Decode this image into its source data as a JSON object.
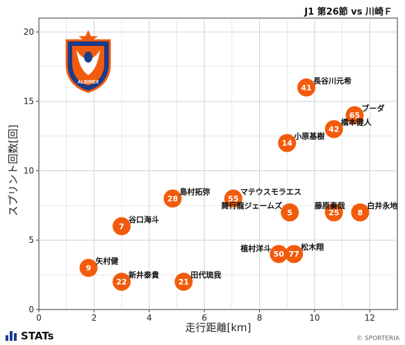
{
  "header": {
    "title": "J1 第26節 vs 川崎Ｆ"
  },
  "footer": {
    "brand": "STATs",
    "credit": "© SPORTERIA"
  },
  "colors": {
    "marker": "#f35b0c",
    "marker_text": "#ffffff",
    "grid": "#d0d0d0",
    "axis": "#333333"
  },
  "crest": {
    "text": "ALBIREX",
    "icon": "albirex-niigata-crest-icon"
  },
  "chart_data": {
    "type": "scatter",
    "xlabel": "走行距離[km]",
    "ylabel": "スプリント回数[回]",
    "xlim": [
      0,
      13
    ],
    "ylim": [
      0,
      21
    ],
    "xticks": [
      0,
      2,
      4,
      6,
      8,
      10,
      12
    ],
    "yticks": [
      0,
      5,
      10,
      15,
      20
    ],
    "grid": true,
    "points": [
      {
        "number": "41",
        "name": "長谷川元希",
        "x": 9.7,
        "y": 16
      },
      {
        "number": "65",
        "name": "ブーダ",
        "x": 11.45,
        "y": 14
      },
      {
        "number": "42",
        "name": "橋本健人",
        "x": 10.7,
        "y": 13
      },
      {
        "number": "14",
        "name": "小原基樹",
        "x": 9.0,
        "y": 12
      },
      {
        "number": "28",
        "name": "島村拓弥",
        "x": 4.85,
        "y": 8
      },
      {
        "number": "55",
        "name": "マテウスモラエス",
        "x": 7.05,
        "y": 8
      },
      {
        "number": "5",
        "name": "舞行龍ジェームズ",
        "x": 9.1,
        "y": 7
      },
      {
        "number": "25",
        "name": "藤原奏哉",
        "x": 10.7,
        "y": 7
      },
      {
        "number": "8",
        "name": "白井永地",
        "x": 11.65,
        "y": 7
      },
      {
        "number": "7",
        "name": "谷口海斗",
        "x": 3.0,
        "y": 6
      },
      {
        "number": "50",
        "name": "植村洋斗",
        "x": 8.7,
        "y": 4
      },
      {
        "number": "77",
        "name": "松木翔",
        "x": 9.25,
        "y": 4
      },
      {
        "number": "9",
        "name": "矢村健",
        "x": 1.8,
        "y": 3
      },
      {
        "number": "22",
        "name": "新井泰貴",
        "x": 3.0,
        "y": 2
      },
      {
        "number": "21",
        "name": "田代琉我",
        "x": 5.25,
        "y": 2
      }
    ]
  }
}
